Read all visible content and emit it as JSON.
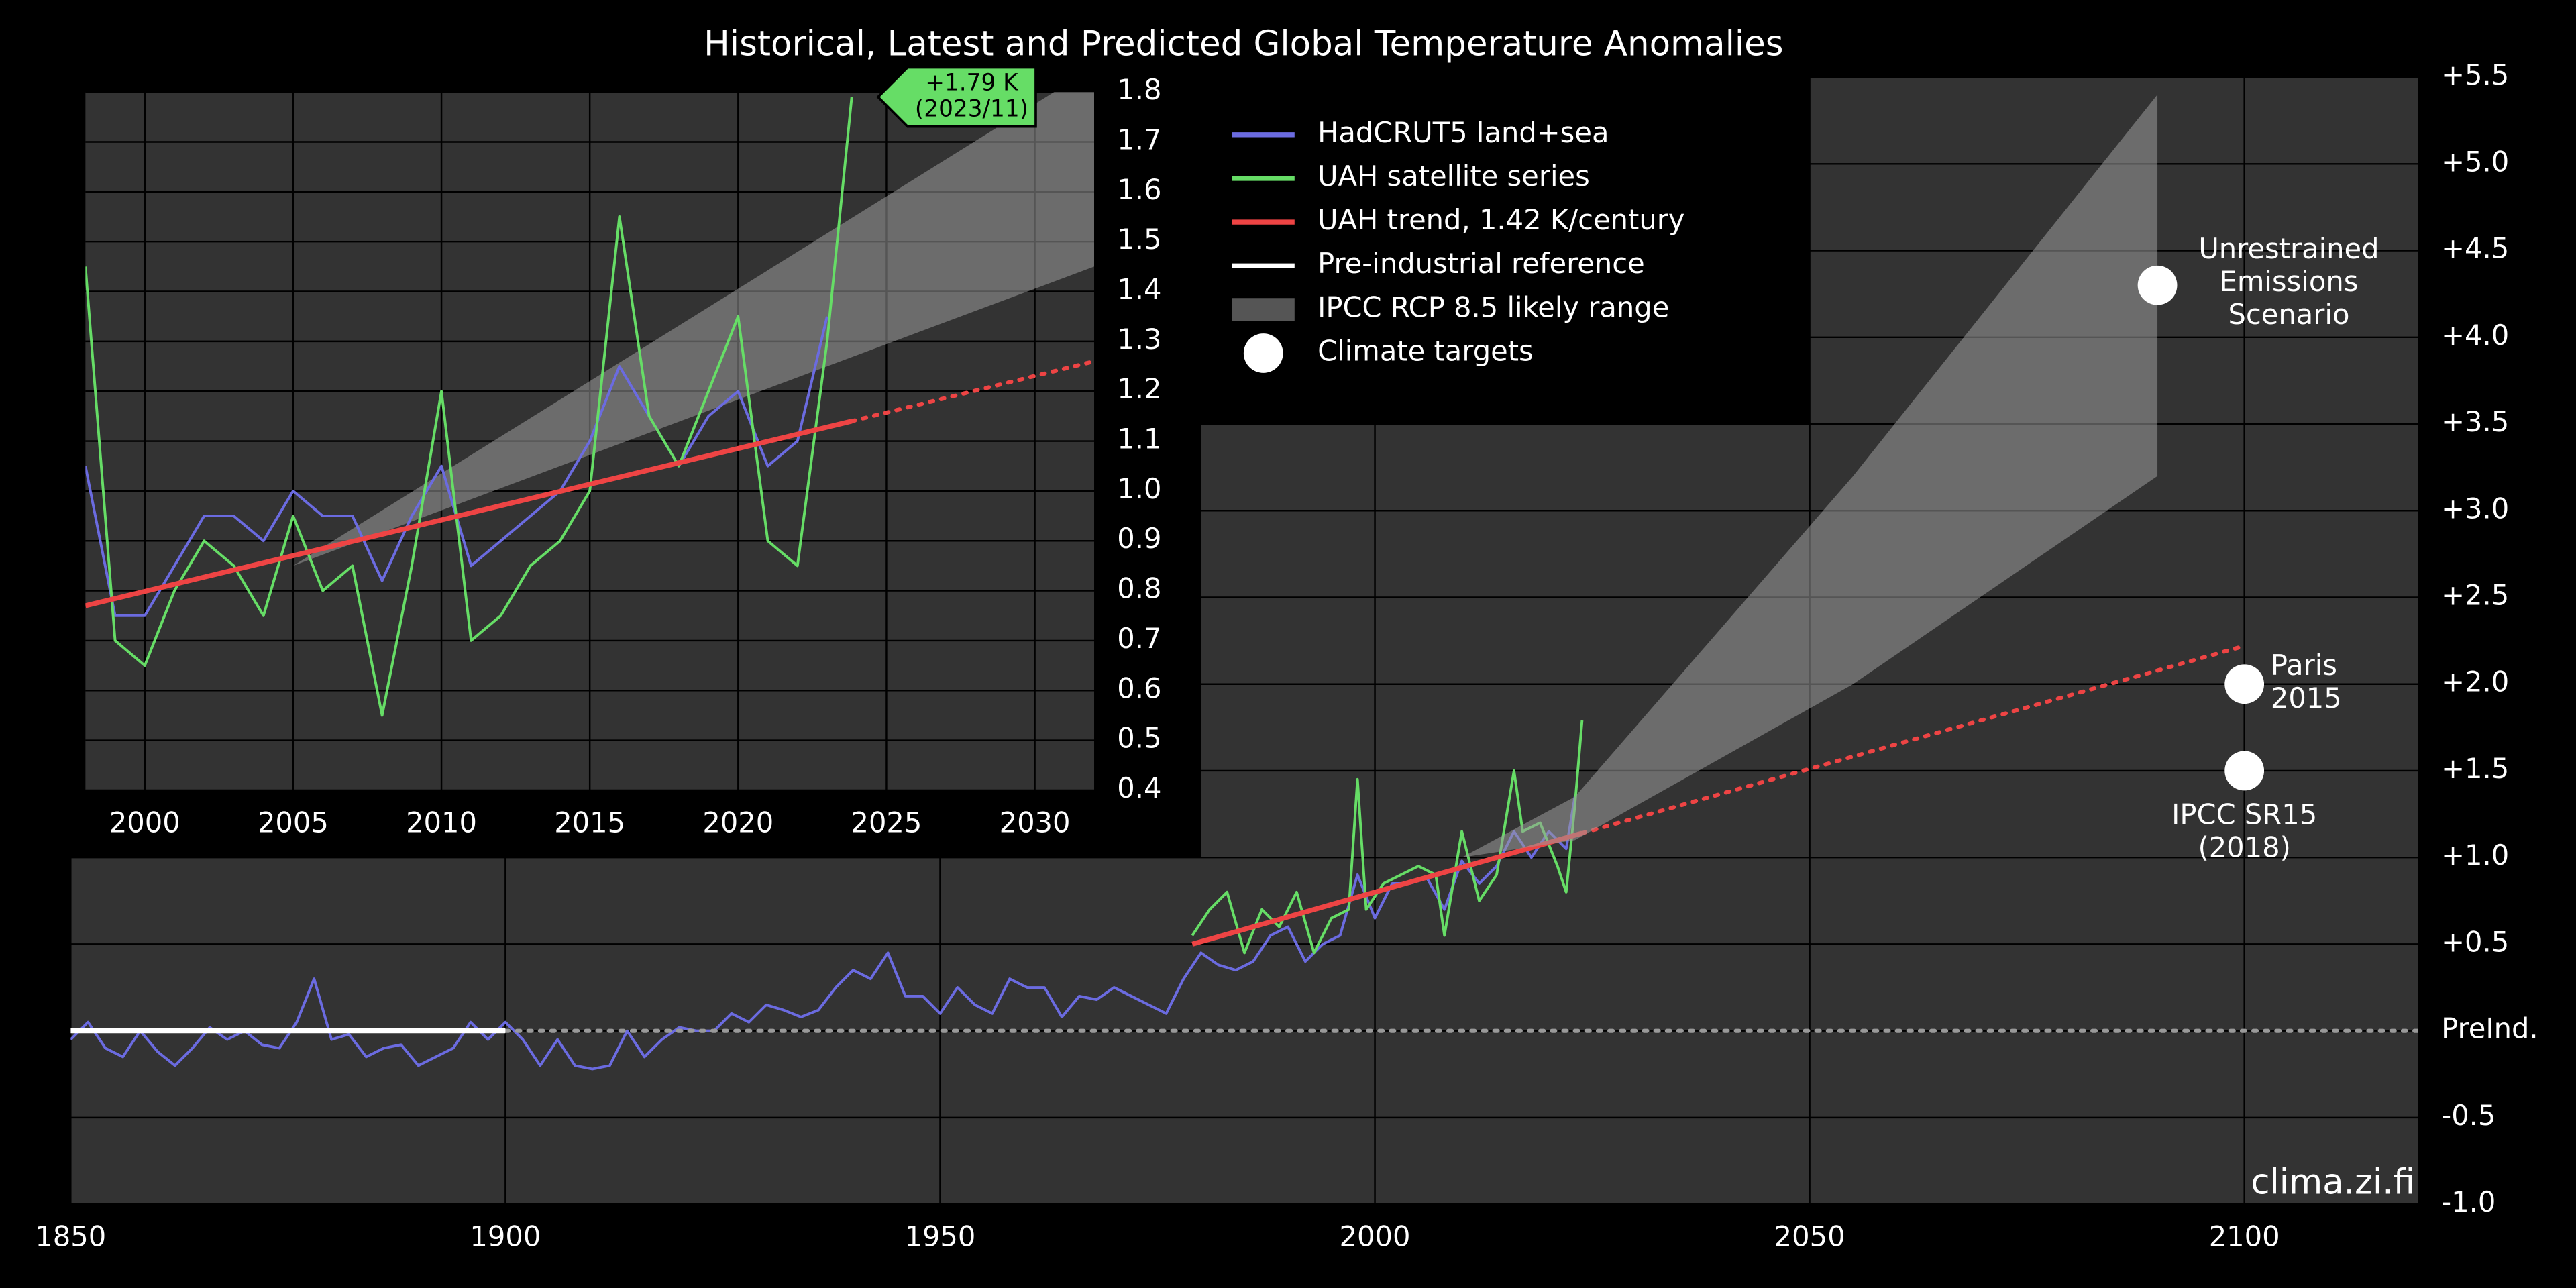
{
  "title": "Historical, Latest and Predicted Global Temperature Anomalies",
  "chart_data": [
    {
      "type": "line",
      "watermark": "clima.zi.fi",
      "xlim": [
        1850,
        2120
      ],
      "xticks": [
        1850,
        1900,
        1950,
        2000,
        2050,
        2100
      ],
      "ylim": [
        -1.0,
        5.5
      ],
      "yticks": [
        {
          "value": -1.0,
          "label": "-1.0"
        },
        {
          "value": -0.5,
          "label": "-0.5"
        },
        {
          "value": 0,
          "label": "PreInd."
        },
        {
          "value": 0.5,
          "label": "+0.5"
        },
        {
          "value": 1.0,
          "label": "+1.0"
        },
        {
          "value": 1.5,
          "label": "+1.5"
        },
        {
          "value": 2.0,
          "label": "+2.0"
        },
        {
          "value": 2.5,
          "label": "+2.5"
        },
        {
          "value": 3.0,
          "label": "+3.0"
        },
        {
          "value": 3.5,
          "label": "+3.5"
        },
        {
          "value": 4.0,
          "label": "+4.0"
        },
        {
          "value": 4.5,
          "label": "+4.5"
        },
        {
          "value": 5.0,
          "label": "+5.0"
        },
        {
          "value": 5.5,
          "label": "+5.5"
        }
      ],
      "grid": true,
      "series": [
        {
          "name": "HadCRUT5 land+sea",
          "kind": "line",
          "color": "#6b6be0",
          "x": [
            1850,
            1852,
            1854,
            1856,
            1858,
            1860,
            1862,
            1864,
            1866,
            1868,
            1870,
            1872,
            1874,
            1876,
            1878,
            1880,
            1882,
            1884,
            1886,
            1888,
            1890,
            1892,
            1894,
            1896,
            1898,
            1900,
            1902,
            1904,
            1906,
            1908,
            1910,
            1912,
            1914,
            1916,
            1918,
            1920,
            1922,
            1924,
            1926,
            1928,
            1930,
            1932,
            1934,
            1936,
            1938,
            1940,
            1942,
            1944,
            1946,
            1948,
            1950,
            1952,
            1954,
            1956,
            1958,
            1960,
            1962,
            1964,
            1966,
            1968,
            1970,
            1972,
            1974,
            1976,
            1978,
            1980,
            1982,
            1984,
            1986,
            1988,
            1990,
            1992,
            1994,
            1996,
            1998,
            2000,
            2002,
            2004,
            2006,
            2008,
            2010,
            2012,
            2014,
            2016,
            2018,
            2020,
            2022,
            2023
          ],
          "values": [
            -0.05,
            0.05,
            -0.1,
            -0.15,
            0.0,
            -0.12,
            -0.2,
            -0.1,
            0.02,
            -0.05,
            0.0,
            -0.08,
            -0.1,
            0.05,
            0.3,
            -0.05,
            -0.02,
            -0.15,
            -0.1,
            -0.08,
            -0.2,
            -0.15,
            -0.1,
            0.05,
            -0.05,
            0.05,
            -0.05,
            -0.2,
            -0.05,
            -0.2,
            -0.22,
            -0.2,
            0.0,
            -0.15,
            -0.05,
            0.02,
            0.0,
            0.0,
            0.1,
            0.05,
            0.15,
            0.12,
            0.08,
            0.12,
            0.25,
            0.35,
            0.3,
            0.45,
            0.2,
            0.2,
            0.1,
            0.25,
            0.15,
            0.1,
            0.3,
            0.25,
            0.25,
            0.08,
            0.2,
            0.18,
            0.25,
            0.2,
            0.15,
            0.1,
            0.3,
            0.45,
            0.38,
            0.35,
            0.4,
            0.55,
            0.6,
            0.4,
            0.5,
            0.55,
            0.9,
            0.65,
            0.85,
            0.85,
            0.88,
            0.7,
            0.98,
            0.85,
            0.95,
            1.15,
            1.0,
            1.15,
            1.05,
            1.35
          ]
        },
        {
          "name": "UAH satellite series",
          "kind": "line",
          "color": "#66dd66",
          "x": [
            1979,
            1981,
            1983,
            1985,
            1987,
            1989,
            1991,
            1993,
            1995,
            1997,
            1998,
            1999,
            2001,
            2003,
            2005,
            2007,
            2008,
            2010,
            2012,
            2014,
            2016,
            2017,
            2019,
            2021,
            2022,
            2023,
            2023.83
          ],
          "values": [
            0.55,
            0.7,
            0.8,
            0.45,
            0.7,
            0.6,
            0.8,
            0.45,
            0.65,
            0.7,
            1.45,
            0.7,
            0.85,
            0.9,
            0.95,
            0.9,
            0.55,
            1.15,
            0.75,
            0.9,
            1.5,
            1.15,
            1.2,
            0.95,
            0.8,
            1.3,
            1.79
          ]
        },
        {
          "name": "UAH trend, 1.42 K/century",
          "kind": "line",
          "color": "#ee4444",
          "width": 3,
          "x": [
            1979,
            2023.83
          ],
          "values": [
            0.5,
            1.14
          ],
          "projection": {
            "x": [
              2023.83,
              2100
            ],
            "values": [
              1.14,
              2.22
            ],
            "color": "#ee4444"
          }
        },
        {
          "name": "Pre-industrial reference",
          "kind": "line",
          "color": "#ffffff",
          "width": 3,
          "x": [
            1850,
            1900
          ],
          "values": [
            0,
            0
          ],
          "projection": {
            "x": [
              1900,
              2120
            ],
            "values": [
              0,
              0
            ],
            "color": "#999999"
          }
        },
        {
          "name": "IPCC RCP 8.5 likely range",
          "kind": "band",
          "color": "#9a9a9a",
          "x": [
            2010,
            2023,
            2055,
            2090
          ],
          "lower": [
            1.0,
            1.1,
            2.0,
            3.2
          ],
          "upper": [
            1.0,
            1.35,
            3.2,
            5.4
          ]
        },
        {
          "name": "Climate targets",
          "kind": "points",
          "color": "#ffffff",
          "x": [
            2090,
            2100,
            2100
          ],
          "values": [
            4.3,
            2.0,
            1.5
          ],
          "labels": [
            [
              "Unrestrained",
              "Emissions",
              "Scenario"
            ],
            [
              "Paris",
              "2015"
            ],
            [
              "IPCC SR15",
              "(2018)"
            ]
          ]
        }
      ]
    },
    {
      "type": "line",
      "xlim": [
        1998,
        2032
      ],
      "xticks": [
        2000,
        2005,
        2010,
        2015,
        2020,
        2025,
        2030
      ],
      "ylim": [
        0.4,
        1.8
      ],
      "yticks": [
        0.4,
        0.5,
        0.6,
        0.7,
        0.8,
        0.9,
        {
          "value": 1.0,
          "label": "1.0"
        },
        1.1,
        1.2,
        1.3,
        1.4,
        1.5,
        1.6,
        1.7,
        1.8
      ],
      "grid": true,
      "series": [
        {
          "kind": "band",
          "color": "#9a9a9a",
          "x": [
            2005,
            2032
          ],
          "lower": [
            0.85,
            1.45
          ],
          "upper": [
            0.85,
            1.85
          ]
        },
        {
          "kind": "line",
          "color": "#6b6be0",
          "x": [
            1998,
            1999,
            2000,
            2001,
            2002,
            2003,
            2004,
            2005,
            2006,
            2007,
            2008,
            2009,
            2010,
            2011,
            2012,
            2013,
            2014,
            2015,
            2016,
            2017,
            2018,
            2019,
            2020,
            2021,
            2022,
            2023
          ],
          "values": [
            1.05,
            0.75,
            0.75,
            0.85,
            0.95,
            0.95,
            0.9,
            1.0,
            0.95,
            0.95,
            0.82,
            0.95,
            1.05,
            0.85,
            0.9,
            0.95,
            1.0,
            1.1,
            1.25,
            1.15,
            1.05,
            1.15,
            1.2,
            1.05,
            1.1,
            1.35
          ]
        },
        {
          "kind": "line",
          "color": "#66dd66",
          "x": [
            1998,
            1999,
            2000,
            2001,
            2002,
            2003,
            2004,
            2005,
            2006,
            2007,
            2008,
            2009,
            2010,
            2011,
            2012,
            2013,
            2014,
            2015,
            2016,
            2017,
            2018,
            2019,
            2020,
            2021,
            2022,
            2023,
            2023.83
          ],
          "values": [
            1.45,
            0.7,
            0.65,
            0.8,
            0.9,
            0.85,
            0.75,
            0.95,
            0.8,
            0.85,
            0.55,
            0.85,
            1.2,
            0.7,
            0.75,
            0.85,
            0.9,
            1.0,
            1.55,
            1.15,
            1.05,
            1.2,
            1.35,
            0.9,
            0.85,
            1.3,
            1.79
          ],
          "annotation": [
            "+1.79 K",
            "(2023/11)"
          ]
        },
        {
          "kind": "line",
          "color": "#ee4444",
          "width": 3,
          "x": [
            1998,
            2023.83
          ],
          "values": [
            0.77,
            1.14
          ],
          "projection": {
            "x": [
              2023.83,
              2032
            ],
            "values": [
              1.14,
              1.26
            ],
            "color": "#ee4444"
          }
        }
      ]
    }
  ]
}
